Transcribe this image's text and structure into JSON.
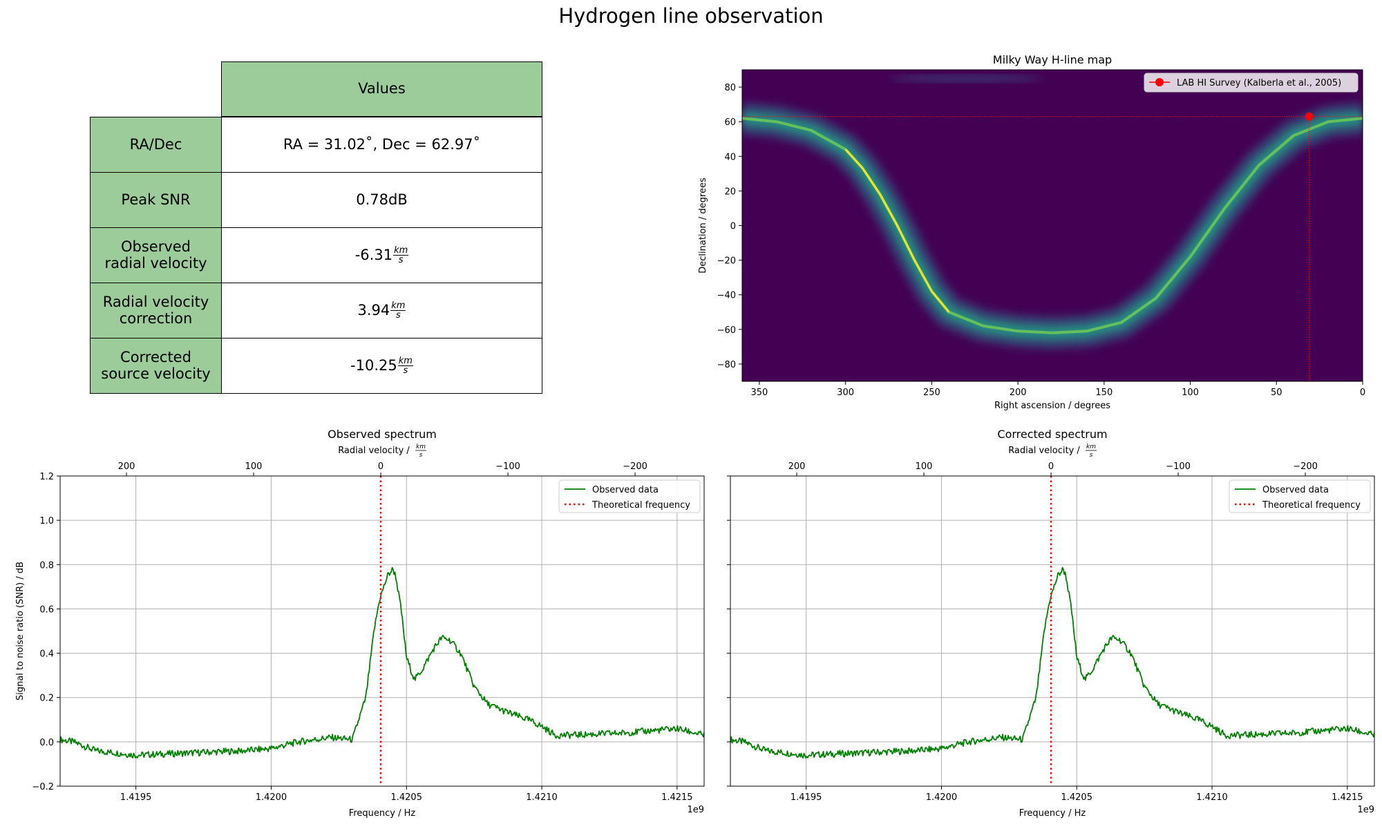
{
  "figure_title": "Hydrogen line observation",
  "table": {
    "header": "Values",
    "rows": [
      {
        "label": "RA/Dec",
        "value": "RA = 31.02˚, Dec = 62.97˚",
        "unit": ""
      },
      {
        "label": "Peak SNR",
        "value": "0.78dB",
        "unit": ""
      },
      {
        "label": "Observed\nradial velocity",
        "value": "-6.31",
        "unit": "km/s"
      },
      {
        "label": "Radial velocity\ncorrection",
        "value": "3.94",
        "unit": "km/s"
      },
      {
        "label": "Corrected\nsource velocity",
        "value": "-10.25",
        "unit": "km/s"
      }
    ],
    "header_color": "#9dcc9b"
  },
  "chart_data": [
    {
      "type": "heatmap",
      "title": "Milky Way H-line map",
      "xlabel": "Right ascension / degrees",
      "ylabel": "Declination / degrees",
      "xlim": [
        360,
        0
      ],
      "ylim": [
        -90,
        90
      ],
      "xticks": [
        350,
        300,
        250,
        200,
        150,
        100,
        50,
        0
      ],
      "yticks": [
        80,
        60,
        40,
        20,
        0,
        -20,
        -40,
        -60,
        -80
      ],
      "galactic_plane_ridge": [
        [
          360,
          62
        ],
        [
          340,
          60
        ],
        [
          320,
          55
        ],
        [
          300,
          44
        ],
        [
          290,
          33
        ],
        [
          280,
          18
        ],
        [
          270,
          0
        ],
        [
          260,
          -20
        ],
        [
          250,
          -38
        ],
        [
          240,
          -50
        ],
        [
          220,
          -58
        ],
        [
          200,
          -61
        ],
        [
          180,
          -62
        ],
        [
          160,
          -61
        ],
        [
          140,
          -56
        ],
        [
          120,
          -42
        ],
        [
          100,
          -18
        ],
        [
          80,
          10
        ],
        [
          60,
          35
        ],
        [
          40,
          52
        ],
        [
          20,
          60
        ],
        [
          0,
          62
        ]
      ],
      "marker": {
        "ra": 31.02,
        "dec": 62.97
      },
      "legend": "LAB HI Survey (Kalberla et al., 2005)",
      "legend_position": "top-right",
      "marker_color": "#ff0000",
      "background_color": "#440154"
    },
    {
      "type": "line",
      "title": "Observed spectrum",
      "xlabel": "Frequency / Hz",
      "x_offset_label": "1e9",
      "top_xlabel": "Radial velocity / km/s",
      "top_xticks": [
        200,
        100,
        0,
        -100,
        -200
      ],
      "ylabel": "Signal to noise ratio (SNR) / dB",
      "xlim": [
        1.41922,
        1.4216
      ],
      "ylim": [
        -0.2,
        1.2
      ],
      "xticks": [
        1.4195,
        1.42,
        1.4205,
        1.421,
        1.4215
      ],
      "yticks": [
        -0.2,
        0.0,
        0.2,
        0.4,
        0.6,
        0.8,
        1.0,
        1.2
      ],
      "grid": true,
      "legend_position": "top-right",
      "theoretical_frequency": 1.420405,
      "series": [
        {
          "name": "Observed data",
          "color": "#008000",
          "x": [
            1.41922,
            1.41927,
            1.41935,
            1.4195,
            1.4197,
            1.4199,
            1.42,
            1.4201,
            1.42022,
            1.4203,
            1.42035,
            1.42038,
            1.4204,
            1.42043,
            1.42045,
            1.42046,
            1.42048,
            1.4205,
            1.42053,
            1.42056,
            1.4206,
            1.42063,
            1.42066,
            1.4207,
            1.42075,
            1.4208,
            1.42088,
            1.42095,
            1.421,
            1.42105,
            1.4211,
            1.4213,
            1.4215,
            1.4216
          ],
          "y": [
            0.01,
            0.0,
            -0.04,
            -0.06,
            -0.05,
            -0.04,
            -0.03,
            0.0,
            0.02,
            0.01,
            0.2,
            0.5,
            0.64,
            0.75,
            0.78,
            0.75,
            0.6,
            0.38,
            0.28,
            0.33,
            0.42,
            0.47,
            0.46,
            0.4,
            0.25,
            0.17,
            0.13,
            0.1,
            0.07,
            0.03,
            0.03,
            0.04,
            0.06,
            0.03
          ]
        },
        {
          "name": "Theoretical frequency",
          "color": "#ff0000",
          "style": "dotted"
        }
      ]
    },
    {
      "type": "line",
      "title": "Corrected spectrum",
      "xlabel": "Frequency / Hz",
      "x_offset_label": "1e9",
      "top_xlabel": "Radial velocity / km/s",
      "top_xticks": [
        200,
        100,
        0,
        -100,
        -200
      ],
      "xlim": [
        1.41922,
        1.4216
      ],
      "ylim": [
        -0.2,
        1.2
      ],
      "xticks": [
        1.4195,
        1.42,
        1.4205,
        1.421,
        1.4215
      ],
      "grid": true,
      "legend_position": "top-right",
      "theoretical_frequency": 1.420405,
      "series": [
        {
          "name": "Observed data",
          "color": "#008000",
          "x": [
            1.41922,
            1.41927,
            1.41935,
            1.4195,
            1.4197,
            1.4199,
            1.42,
            1.4201,
            1.42022,
            1.4203,
            1.42035,
            1.42038,
            1.4204,
            1.42043,
            1.42045,
            1.42046,
            1.42048,
            1.4205,
            1.42053,
            1.42056,
            1.4206,
            1.42063,
            1.42066,
            1.4207,
            1.42075,
            1.4208,
            1.42088,
            1.42095,
            1.421,
            1.42105,
            1.4211,
            1.4213,
            1.4215,
            1.4216
          ],
          "y": [
            0.01,
            0.0,
            -0.04,
            -0.06,
            -0.05,
            -0.04,
            -0.03,
            0.0,
            0.02,
            0.01,
            0.2,
            0.5,
            0.64,
            0.75,
            0.78,
            0.75,
            0.6,
            0.38,
            0.28,
            0.33,
            0.42,
            0.47,
            0.46,
            0.4,
            0.25,
            0.17,
            0.13,
            0.1,
            0.07,
            0.03,
            0.03,
            0.04,
            0.06,
            0.03
          ]
        },
        {
          "name": "Theoretical frequency",
          "color": "#ff0000",
          "style": "dotted"
        }
      ]
    }
  ]
}
